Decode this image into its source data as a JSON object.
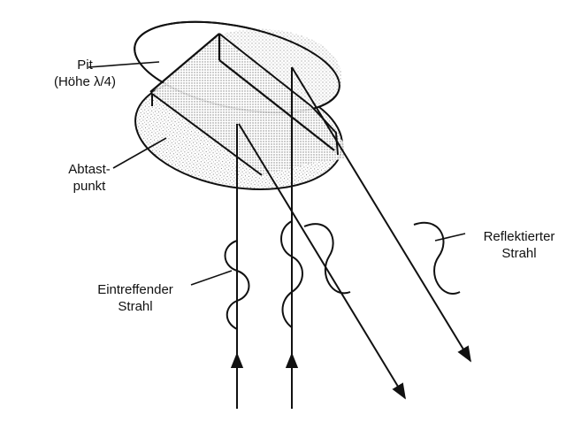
{
  "labels": {
    "pit": {
      "line1": "Pit",
      "line2": "(Höhe λ/4)"
    },
    "scan_spot": {
      "line1": "Abtast-",
      "line2": "punkt"
    },
    "reflected_beam": {
      "line1": "Reflektierter",
      "line2": "Strahl"
    },
    "incident_beam": {
      "line1": "Eintreffender",
      "line2": "Strahl"
    }
  },
  "colors": {
    "ink": "#111111",
    "stipple": "#8a8a8a",
    "paper": "#ffffff"
  }
}
